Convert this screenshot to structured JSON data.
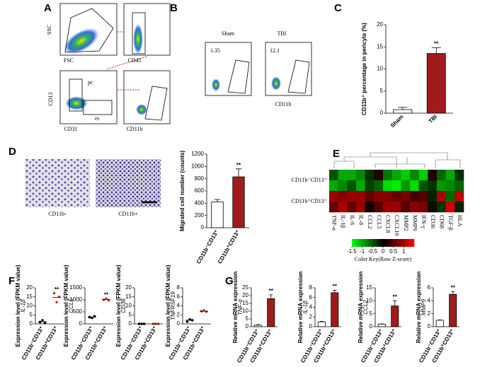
{
  "panel_letters": [
    "A",
    "B",
    "C",
    "D",
    "E",
    "F",
    "G"
  ],
  "flow_a": {
    "axes": [
      "SSC",
      "FSC",
      "CD45",
      "CD13",
      "CD31",
      "CD11b"
    ],
    "gates": [
      "pc",
      "ec"
    ]
  },
  "flow_b": {
    "titles": [
      "Sham",
      "TBI"
    ],
    "percents": [
      "1.35",
      "12.1"
    ],
    "xlabel": "CD11b"
  },
  "micrographs": [
    "CD11b-",
    "CD11b+"
  ],
  "chart_data": [
    {
      "type": "bar",
      "ylabel": "CD11b⁺ percentage in pericyte (%)",
      "categories": [
        "Sham",
        "TBI"
      ],
      "values": [
        0.8,
        13.5
      ],
      "errors": [
        0.5,
        1.3
      ],
      "colors": [
        "#ffffff",
        "#a01c1c"
      ],
      "ylim": [
        0,
        20
      ],
      "yticks": [
        0,
        5,
        10,
        15,
        20
      ],
      "annotation": "**"
    },
    {
      "type": "bar",
      "ylabel": "Migrated cell number (counts)",
      "categories": [
        "CD11b⁻CD13⁺",
        "CD11b⁺CD13⁺"
      ],
      "values": [
        420,
        830
      ],
      "errors": [
        40,
        130
      ],
      "colors": [
        "#ffffff",
        "#a01c1c"
      ],
      "ylim": [
        0,
        1200
      ],
      "yticks": [
        0,
        200,
        400,
        600,
        800,
        1000,
        1200
      ],
      "annotation": "**"
    },
    {
      "type": "heatmap",
      "row_labels": [
        "CD11b⁻CD13⁺",
        "CD11b⁺CD13⁺"
      ],
      "columns": [
        "TNF-α",
        "IL-1β",
        "IL-6",
        "IL-8",
        "CCL2",
        "CCL5",
        "CXCL8",
        "CXCL10",
        "MMP2",
        "MMP9",
        "IFN-γ",
        "CD36",
        "CD68",
        "TGF-β",
        "HLA"
      ],
      "values": [
        [
          -0.5,
          -1,
          -1,
          -0.8,
          -0.3,
          0.2,
          -0.7,
          -1,
          -1.2,
          -0.8,
          -1.2,
          0.2,
          -0.6,
          -1,
          -0.3
        ],
        [
          -1,
          -0.8,
          -0.5,
          -1,
          -0.4,
          -0.6,
          -1.3,
          -1.4,
          -0.9,
          -1.3,
          -0.5,
          -0.3,
          -0.9,
          -0.8,
          -0.6
        ],
        [
          0.9,
          0.8,
          0.9,
          0.9,
          0.6,
          0.8,
          0.8,
          0.6,
          0.7,
          0.4,
          0.5,
          -0.2,
          1,
          -0.6,
          1.1
        ],
        [
          0.6,
          1,
          0.6,
          0.9,
          0.1,
          0.5,
          0.9,
          0.9,
          0.5,
          0.8,
          0.7,
          -0.1,
          -0.3,
          1.2,
          -0.2
        ]
      ],
      "colorscale": [
        "#00ff00",
        "#000000",
        "#ff0000"
      ],
      "clim": [
        -1.5,
        1.5
      ],
      "cticks": [
        -1.5,
        -1,
        -0.5,
        0,
        0.5,
        1
      ],
      "ckey_title": "Color Key(Row Z-score)"
    },
    {
      "type": "dot",
      "ylabel": "Expression level (FPKM value)",
      "gene": "IL-1β",
      "categories": [
        "CD11b⁻CD13⁺",
        "CD11b⁺CD13⁺"
      ],
      "values": [
        [
          1,
          2,
          0.5
        ],
        [
          17,
          12,
          15
        ]
      ],
      "means": [
        1.2,
        14.7
      ],
      "colors": [
        "#000000",
        "#c0392b"
      ],
      "ylim": [
        0,
        20
      ],
      "yticks": [
        0,
        5,
        10,
        15,
        20
      ],
      "annotation": "**"
    },
    {
      "type": "dot",
      "ylabel": "Expression level (FPKM value)",
      "gene": "CCL5",
      "categories": [
        "CD11b⁻CD13⁺",
        "CD11b⁺CD13⁺"
      ],
      "values": [
        [
          280,
          250,
          320
        ],
        [
          1000,
          1050,
          980
        ]
      ],
      "means": [
        283,
        1010
      ],
      "colors": [
        "#000000",
        "#c0392b"
      ],
      "ylim": [
        0,
        1500
      ],
      "yticks": [
        0,
        500,
        1000,
        1500
      ],
      "annotation": "**"
    },
    {
      "type": "dot",
      "ylabel": "Expression level (FPKM value)",
      "gene": "CD36",
      "categories": [
        "CD11b⁻CD13⁺",
        "CD11b⁺CD13⁺"
      ],
      "values": [
        [
          0,
          0,
          0
        ],
        [
          0,
          0,
          0
        ]
      ],
      "means": [
        0,
        0
      ],
      "colors": [
        "#000000",
        "#c0392b"
      ],
      "ylim": [
        0,
        20
      ],
      "yticks": [
        0,
        5,
        10,
        15,
        20
      ]
    },
    {
      "type": "dot",
      "ylabel": "Expression level (FPKM value)",
      "gene": "TNFRSF19",
      "categories": [
        "CD11b⁻CD13⁺",
        "CD11b⁺CD13⁺"
      ],
      "values": [
        [
          0.5,
          1,
          0.8
        ],
        [
          2.8,
          3,
          2.7
        ]
      ],
      "means": [
        0.8,
        2.8
      ],
      "colors": [
        "#000000",
        "#c0392b"
      ],
      "ylim": [
        0,
        8
      ],
      "yticks": [
        0,
        2,
        4,
        6,
        8
      ]
    },
    {
      "type": "bar",
      "ylabel": "Relative mRNA expression",
      "gene": "TNF-α",
      "categories": [
        "CD11b⁻CD13⁺",
        "CD11b⁺CD13⁺"
      ],
      "values": [
        1,
        18
      ],
      "errors": [
        0.3,
        2.5
      ],
      "colors": [
        "#ffffff",
        "#a01c1c"
      ],
      "ylim": [
        0,
        25
      ],
      "yticks": [
        0,
        5,
        10,
        15,
        20,
        25
      ],
      "annotation": "**"
    },
    {
      "type": "bar",
      "ylabel": "Relative mRNA expression",
      "gene": "IL-1β",
      "categories": [
        "CD11b⁻CD13⁺",
        "CD11b⁺CD13⁺"
      ],
      "values": [
        1,
        7
      ],
      "errors": [
        0.1,
        0.5
      ],
      "colors": [
        "#ffffff",
        "#a01c1c"
      ],
      "ylim": [
        0,
        8
      ],
      "yticks": [
        0,
        2,
        4,
        6,
        8
      ],
      "annotation": "**"
    },
    {
      "type": "bar",
      "ylabel": "Relative mRNA expression",
      "gene": "CCL2",
      "categories": [
        "CD11b⁻CD13⁺",
        "CD11b⁺CD13⁺"
      ],
      "values": [
        1,
        8
      ],
      "errors": [
        0.1,
        2
      ],
      "colors": [
        "#ffffff",
        "#a01c1c"
      ],
      "ylim": [
        0,
        15
      ],
      "yticks": [
        0,
        5,
        10,
        15
      ],
      "annotation": "**"
    },
    {
      "type": "bar",
      "ylabel": "Relative mRNA expression",
      "gene": "MMP9",
      "categories": [
        "CD11b⁻CD13⁺",
        "CD11b⁺CD13⁺"
      ],
      "values": [
        1,
        5
      ],
      "errors": [
        0.05,
        0.4
      ],
      "colors": [
        "#ffffff",
        "#a01c1c"
      ],
      "ylim": [
        0,
        6
      ],
      "yticks": [
        0,
        2,
        4,
        6
      ],
      "annotation": "**"
    }
  ]
}
